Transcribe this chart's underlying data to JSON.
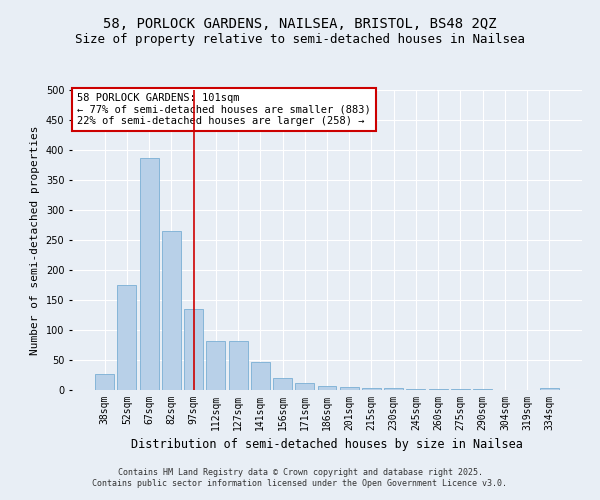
{
  "title_line1": "58, PORLOCK GARDENS, NAILSEA, BRISTOL, BS48 2QZ",
  "title_line2": "Size of property relative to semi-detached houses in Nailsea",
  "xlabel": "Distribution of semi-detached houses by size in Nailsea",
  "ylabel": "Number of semi-detached properties",
  "categories": [
    "38sqm",
    "52sqm",
    "67sqm",
    "82sqm",
    "97sqm",
    "112sqm",
    "127sqm",
    "141sqm",
    "156sqm",
    "171sqm",
    "186sqm",
    "201sqm",
    "215sqm",
    "230sqm",
    "245sqm",
    "260sqm",
    "275sqm",
    "290sqm",
    "304sqm",
    "319sqm",
    "334sqm"
  ],
  "values": [
    27,
    175,
    387,
    265,
    135,
    82,
    82,
    47,
    20,
    12,
    7,
    5,
    4,
    3,
    2,
    2,
    1,
    1,
    0,
    0,
    3
  ],
  "bar_color": "#b8d0e8",
  "bar_edge_color": "#7aafd4",
  "vline_x_index": 4,
  "vline_color": "#cc0000",
  "annotation_title": "58 PORLOCK GARDENS: 101sqm",
  "annotation_line1": "← 77% of semi-detached houses are smaller (883)",
  "annotation_line2": "22% of semi-detached houses are larger (258) →",
  "annotation_box_color": "white",
  "annotation_box_edge": "#cc0000",
  "ylim": [
    0,
    500
  ],
  "yticks": [
    0,
    50,
    100,
    150,
    200,
    250,
    300,
    350,
    400,
    450,
    500
  ],
  "bg_color": "#e8eef5",
  "grid_color": "#ffffff",
  "footer_line1": "Contains HM Land Registry data © Crown copyright and database right 2025.",
  "footer_line2": "Contains public sector information licensed under the Open Government Licence v3.0.",
  "title_fontsize": 10,
  "subtitle_fontsize": 9,
  "axis_label_fontsize": 8,
  "tick_fontsize": 7,
  "annotation_fontsize": 7.5,
  "footer_fontsize": 6
}
